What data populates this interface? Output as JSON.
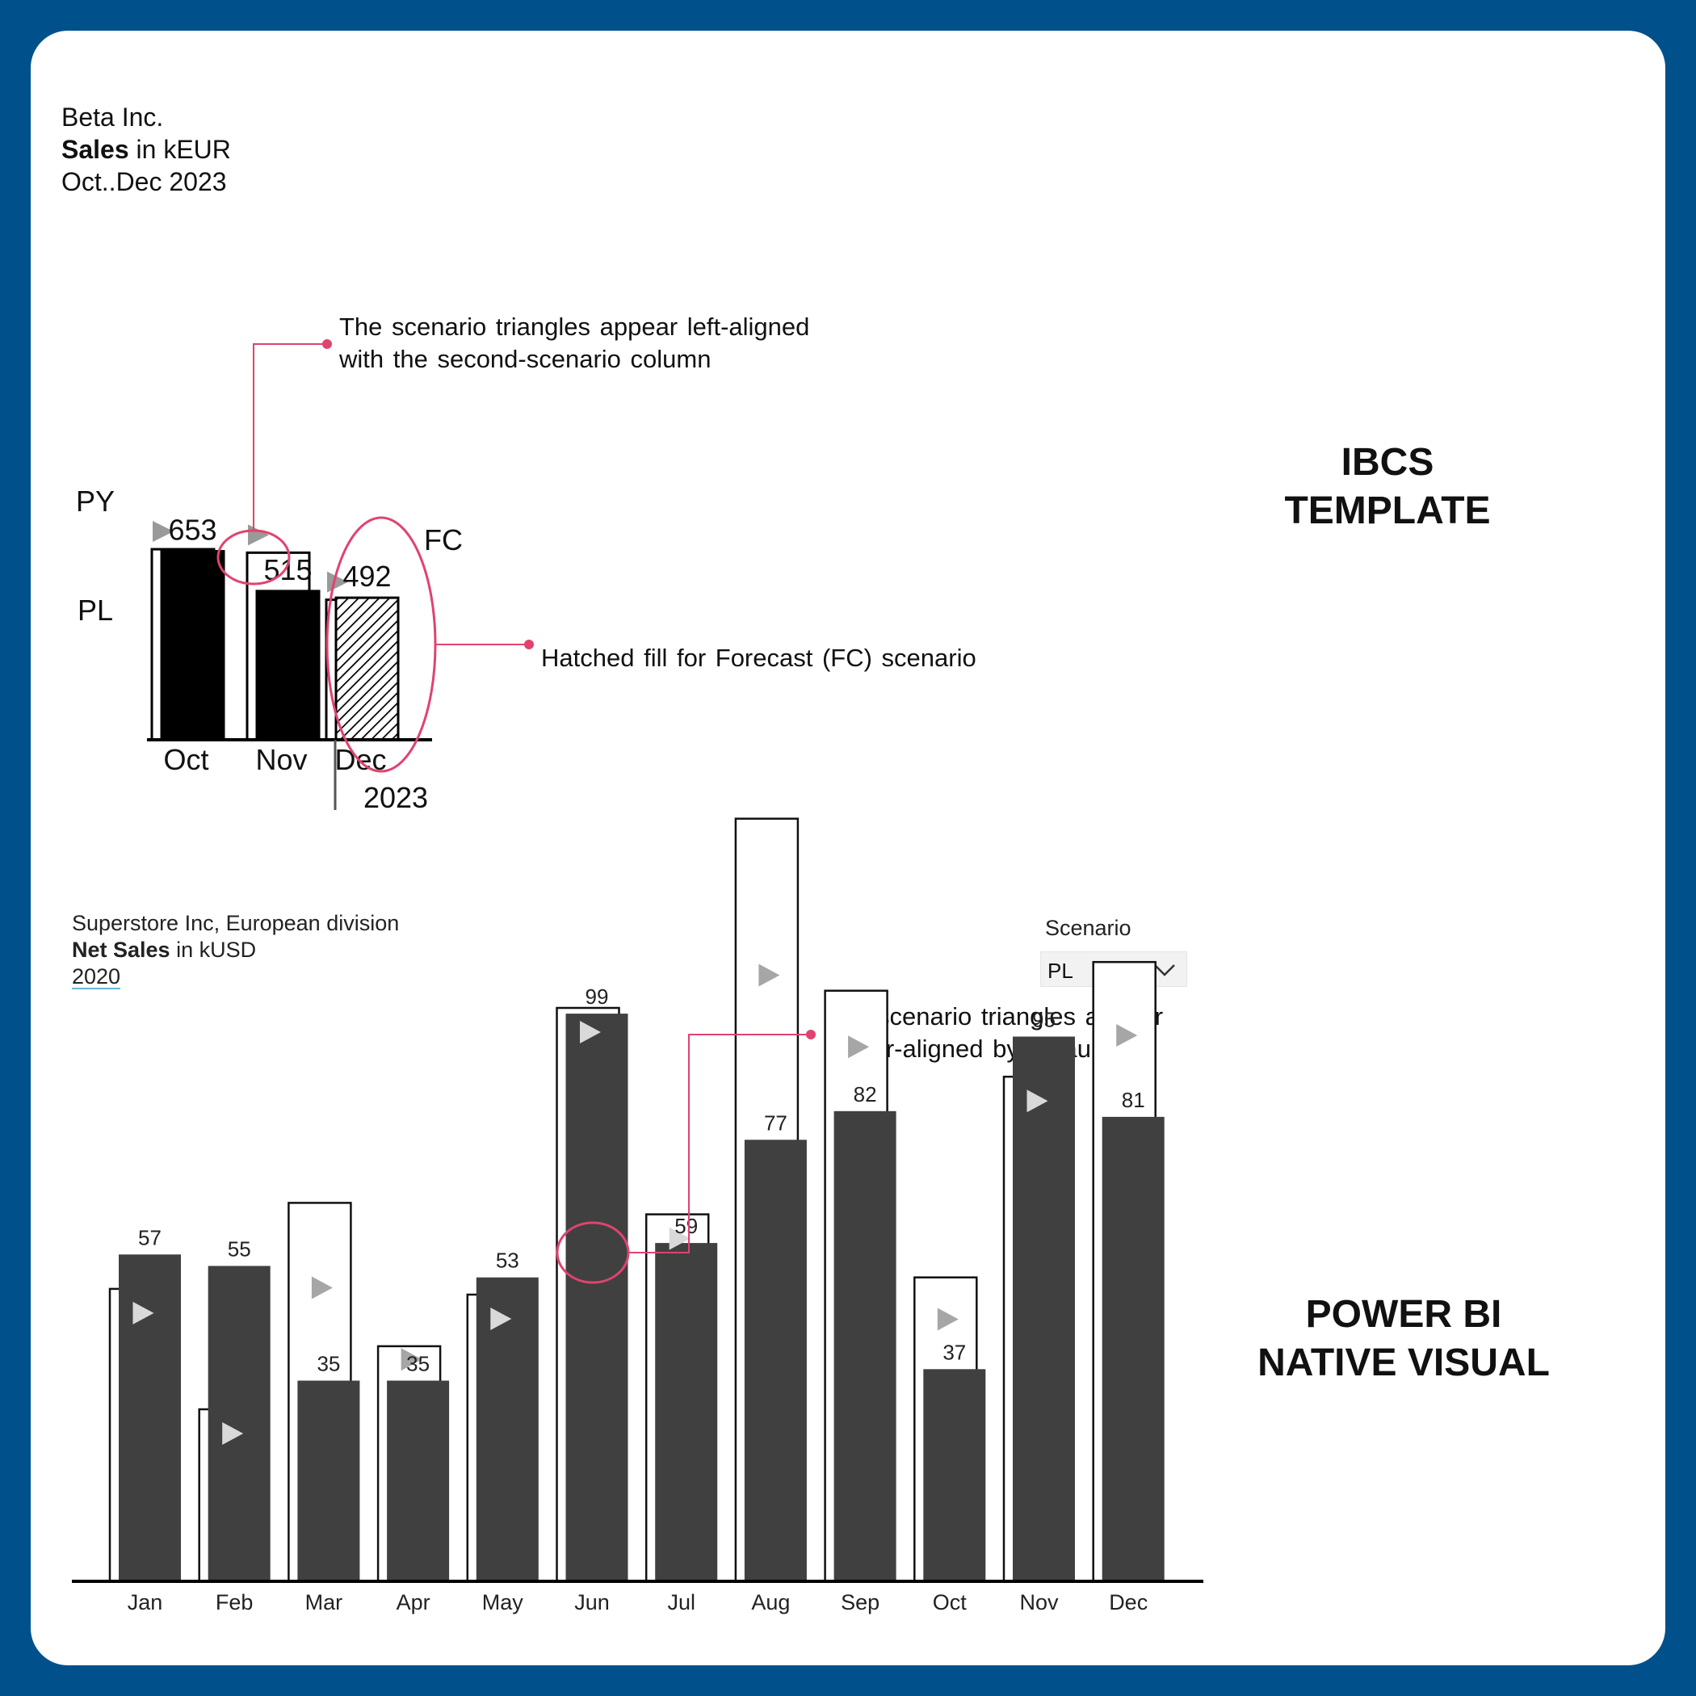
{
  "top": {
    "header": {
      "company": "Beta Inc.",
      "measure_bold": "Sales",
      "measure_rest": " in kEUR",
      "period": "Oct..Dec 2023"
    },
    "side_label": "IBCS\nTEMPLATE",
    "note_triangles": "The scenario triangles appear left-aligned\nwith the second-scenario column",
    "note_hatch": "Hatched fill for Forecast (FC) scenario",
    "annotation_color": "#e0436f"
  },
  "bottom": {
    "header": {
      "company": "Superstore Inc, European division",
      "measure_bold": "Net Sales",
      "measure_rest": " in kUSD",
      "year": "2020"
    },
    "side_label": "POWER BI\nNATIVE VISUAL",
    "note_triangles": "The scenario triangles appear\ncenter-aligned by default",
    "slicer": {
      "label": "Scenario",
      "value": "PL"
    }
  },
  "chart_data": [
    {
      "type": "bar",
      "categories": [
        "Oct",
        "Nov",
        "Dec"
      ],
      "year_label": "2023",
      "series": [
        {
          "name": "PL",
          "values": [
            660,
            648,
            485
          ],
          "style": "outline"
        },
        {
          "values": [
            653,
            515,
            492
          ],
          "style": "solid-black / hatched for FC"
        }
      ],
      "data_labels": [
        "653",
        "515",
        "492"
      ],
      "series_labels": [
        "PY",
        "PL",
        "FC"
      ],
      "hatched_categories": [
        "Dec"
      ],
      "ylim": [
        0,
        700
      ],
      "colors": {
        "actual": "#000000",
        "plan": "#ffffff",
        "triangle": "#9a9a9a"
      }
    },
    {
      "type": "bar",
      "categories": [
        "Jan",
        "Feb",
        "Mar",
        "Apr",
        "May",
        "Jun",
        "Jul",
        "Aug",
        "Sep",
        "Oct",
        "Nov",
        "Dec"
      ],
      "series": [
        {
          "values": [
            57,
            55,
            35,
            35,
            53,
            99,
            59,
            77,
            82,
            37,
            95,
            81
          ],
          "style": "solid"
        },
        {
          "values": [
            51,
            30,
            66,
            41,
            50,
            100,
            64,
            133,
            103,
            53,
            88,
            108
          ],
          "style": "outline"
        }
      ],
      "data_labels": [
        "57",
        "55",
        "35",
        "35",
        "53",
        "99",
        "59",
        "77",
        "82",
        "37",
        "95",
        "81"
      ],
      "ylim": [
        0,
        140
      ],
      "colors": {
        "actual": "#404040",
        "plan": "#ffffff",
        "triangle": "#d9d9d9"
      }
    }
  ]
}
